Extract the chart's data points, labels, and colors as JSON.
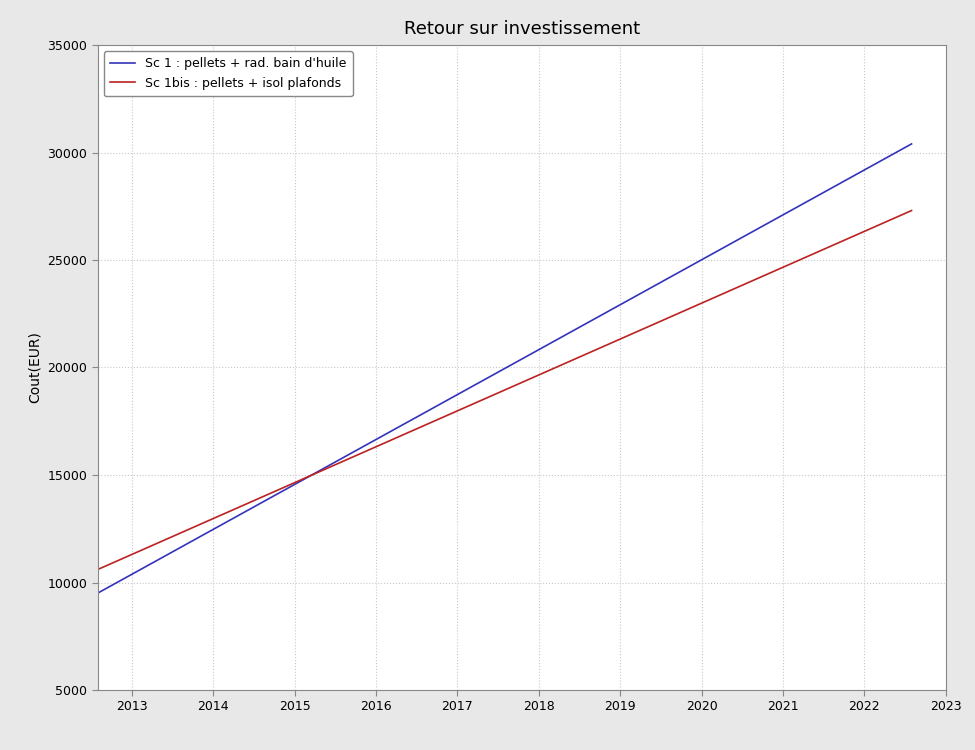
{
  "title": "Retour sur investissement",
  "ylabel": "Cout(EUR)",
  "xlabel": "",
  "xlim": [
    2012.58,
    2023.0
  ],
  "ylim": [
    5000,
    35000
  ],
  "yticks": [
    5000,
    10000,
    15000,
    20000,
    25000,
    30000,
    35000
  ],
  "xticks": [
    2013,
    2014,
    2015,
    2016,
    2017,
    2018,
    2019,
    2020,
    2021,
    2022,
    2023
  ],
  "line1": {
    "label": "Sc 1 : pellets + rad. bain d'huile",
    "color": "#3333bb",
    "x": [
      2012.58,
      2022.58
    ],
    "y": [
      9500,
      30400
    ]
  },
  "line2": {
    "label": "Sc 1bis : pellets + isol plafonds",
    "color": "#bb2222",
    "x": [
      2012.58,
      2022.58
    ],
    "y": [
      10600,
      27300
    ]
  },
  "fig_background_color": "#e8e8e8",
  "ax_background_color": "#ffffff",
  "grid_color": "#c8c8c8",
  "spine_color": "#888888",
  "title_fontsize": 13,
  "axis_label_fontsize": 10,
  "tick_fontsize": 9,
  "legend_fontsize": 9,
  "linewidth": 1.2
}
